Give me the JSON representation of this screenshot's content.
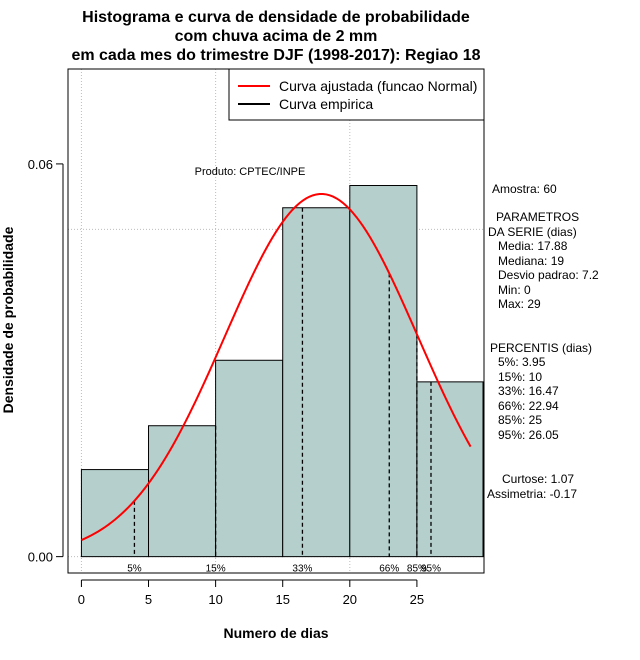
{
  "chart_data": {
    "type": "histogram",
    "title_lines": [
      "Histograma e curva de densidade de probabilidade",
      "com chuva acima de 2 mm",
      "em cada mes do trimestre DJF (1998-2017): Regiao 18"
    ],
    "xlabel": "Numero de dias",
    "ylabel": "Densidade de probabilidade",
    "xlim": [
      -1,
      30
    ],
    "ylim": [
      -0.0025,
      0.0745
    ],
    "x_ticks": [
      0,
      5,
      10,
      15,
      20,
      25
    ],
    "x_tick_labels": [
      "0",
      "5",
      "10",
      "15",
      "20",
      "25"
    ],
    "y_ticks": [
      0.0,
      0.06
    ],
    "y_tick_labels": [
      "0.00",
      "0.06"
    ],
    "bins": [
      {
        "from": 0,
        "to": 5,
        "density": 0.0133
      },
      {
        "from": 5,
        "to": 10,
        "density": 0.02
      },
      {
        "from": 10,
        "to": 15,
        "density": 0.03
      },
      {
        "from": 15,
        "to": 20,
        "density": 0.0533
      },
      {
        "from": 20,
        "to": 25,
        "density": 0.0567
      },
      {
        "from": 25,
        "to": 30,
        "density": 0.0267
      }
    ],
    "normal_fit": {
      "mean": 17.88,
      "sd": 7.2,
      "x_from": 0,
      "x_to": 29
    },
    "percentile_lines": [
      {
        "label": "5%",
        "x": 3.95
      },
      {
        "label": "15%",
        "x": 10
      },
      {
        "label": "33%",
        "x": 16.47
      },
      {
        "label": "66%",
        "x": 22.94
      },
      {
        "label": "85%",
        "x": 25
      },
      {
        "label": "95%",
        "x": 26.05
      }
    ],
    "grid_x": [
      0,
      10,
      20
    ],
    "grid_y": [
      0.0,
      0.05
    ],
    "legend": {
      "position": "top-right",
      "entries": [
        {
          "label": "Curva ajustada (funcao Normal)",
          "color": "#ff0000"
        },
        {
          "label": "Curva empirica",
          "color": "#000000"
        }
      ]
    },
    "annotation": "Produto: CPTEC/INPE",
    "colors": {
      "bar_fill": "#b5cfcd",
      "bar_stroke": "#000000",
      "fit": "#ff0000",
      "grid": "#bdbdbd"
    }
  },
  "side_panel": {
    "amostra": "Amostra: 60",
    "params_title_1": "PARAMETROS",
    "params_title_2": "DA SERIE (dias)",
    "media": "Media: 17.88",
    "mediana": "Mediana: 19",
    "desvio": "Desvio padrao: 7.2",
    "min": "Min: 0",
    "max": "Max: 29",
    "percentis_title": "PERCENTIS (dias)",
    "p5": "5%: 3.95",
    "p15": "15%: 10",
    "p33": "33%: 16.47",
    "p66": "66%: 22.94",
    "p85": "85%: 25",
    "p95": "95%: 26.05",
    "curtose": "Curtose: 1.07",
    "assimetria": "Assimetria: -0.17"
  }
}
